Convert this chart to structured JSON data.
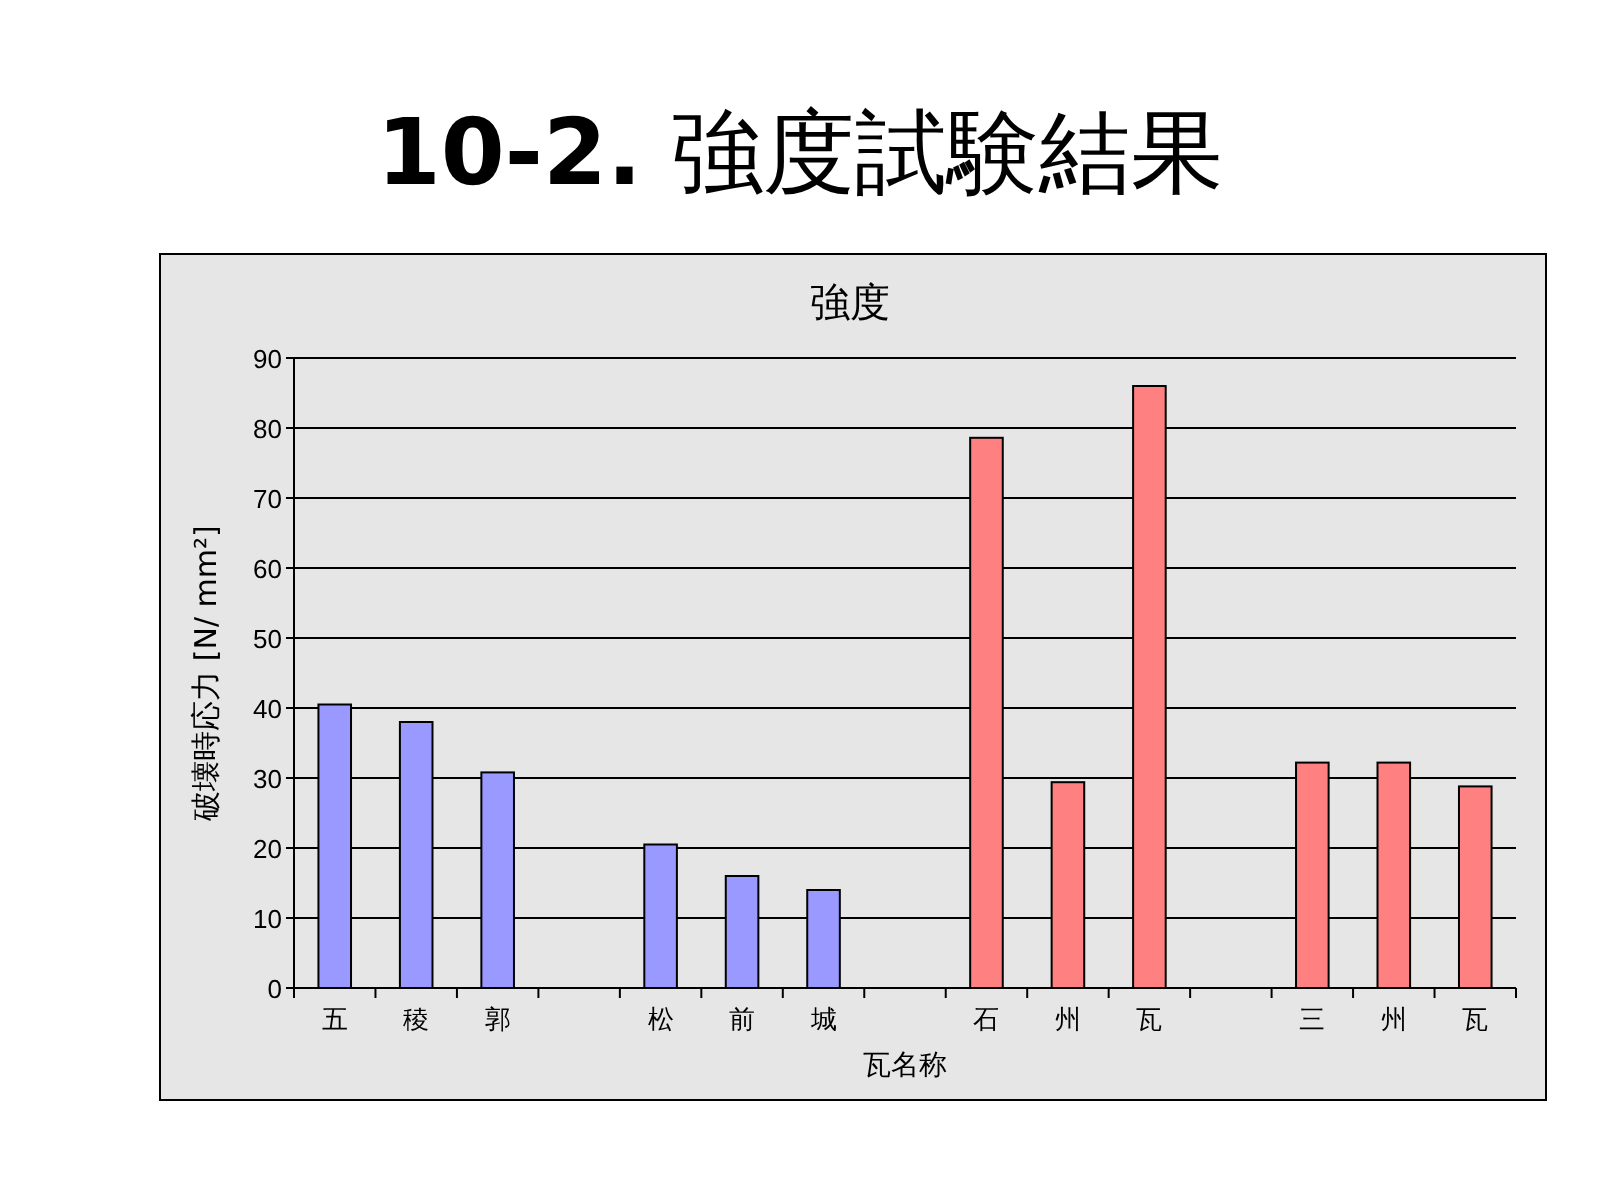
{
  "chart_data": {
    "type": "bar",
    "title": "**10-2.** 強度試験結果",
    "subtitle": "強度",
    "xlabel": "瓦名称",
    "ylabel": "破壊時応力 [N/ mm²]",
    "categories": [
      "五",
      "稜",
      "郭",
      null,
      "松",
      "前",
      "城",
      null,
      "石",
      "州",
      "瓦",
      null,
      "三",
      "州",
      "瓦"
    ],
    "values": [
      40.5,
      38,
      30.8,
      null,
      20.5,
      16,
      14,
      null,
      78.6,
      29.4,
      86,
      null,
      32.2,
      32.2,
      28.8
    ],
    "colors": [
      "#9999ff",
      "#9999ff",
      "#9999ff",
      null,
      "#9999ff",
      "#9999ff",
      "#9999ff",
      null,
      "#ff8080",
      "#ff8080",
      "#ff8080",
      null,
      "#ff8080",
      "#ff8080",
      "#ff8080"
    ],
    "ylim": [
      0,
      90
    ],
    "yticks": [
      0,
      10,
      20,
      30,
      40,
      50,
      60,
      70,
      80,
      90
    ],
    "grid": "y"
  }
}
